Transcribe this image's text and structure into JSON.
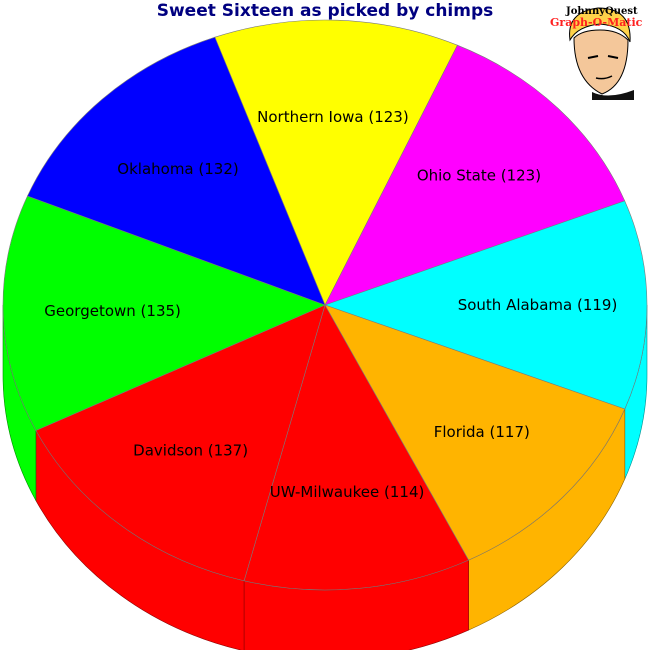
{
  "chart_data": {
    "type": "pie",
    "title": "Sweet Sixteen as picked by chimps",
    "slices": [
      {
        "label": "Northern Iowa (123)",
        "name": "Northern Iowa",
        "value": 123,
        "color": "#ffff00"
      },
      {
        "label": "Ohio State (123)",
        "name": "Ohio State",
        "value": 123,
        "color": "#ff00ff"
      },
      {
        "label": "South Alabama (119)",
        "name": "South Alabama",
        "value": 119,
        "color": "#00ffff"
      },
      {
        "label": "Florida (117)",
        "name": "Florida",
        "value": 117,
        "color": "#ffb400"
      },
      {
        "label": "UW-Milwaukee (114)",
        "name": "UW-Milwaukee",
        "value": 114,
        "color": "#ff0000"
      },
      {
        "label": "Davidson (137)",
        "name": "Davidson",
        "value": 137,
        "color": "#ff0000"
      },
      {
        "label": "Georgetown (135)",
        "name": "Georgetown",
        "value": 135,
        "color": "#00ff00"
      },
      {
        "label": "Oklahoma (132)",
        "name": "Oklahoma",
        "value": 132,
        "color": "#0000ff"
      }
    ]
  },
  "logo": {
    "line1": "JohnnyQuest",
    "line2": "Graph-O-Matic"
  }
}
